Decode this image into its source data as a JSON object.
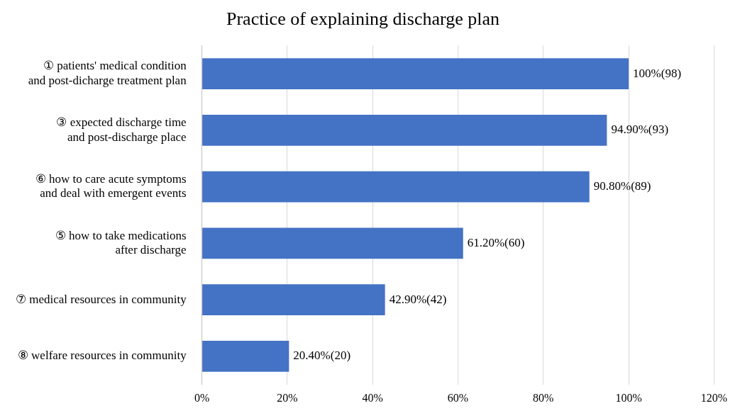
{
  "chart_data": {
    "type": "bar",
    "orientation": "horizontal",
    "title": "Practice of explaining discharge plan",
    "categories": [
      "① patients' medical condition and post-dicharge treatment plan",
      "③ expected discharge time and post-discharge place",
      "⑥ how to care acute symptoms and deal with emergent events",
      "⑤ how to take medications after discharge",
      "⑦ medical resources in community",
      "⑧ welfare resources in community"
    ],
    "values": [
      100,
      94.9,
      90.8,
      61.2,
      42.9,
      20.4
    ],
    "value_labels": [
      "100%(98)",
      "94.90%(93)",
      "90.80%(89)",
      "61.20%(60)",
      "42.90%(42)",
      "20.40%(20)"
    ],
    "color": "#4472c4",
    "xlim": [
      0,
      120
    ],
    "xticks": [
      {
        "value": 0,
        "label": "0%"
      },
      {
        "value": 20,
        "label": "20%"
      },
      {
        "value": 40,
        "label": "40%"
      },
      {
        "value": 60,
        "label": "60%"
      },
      {
        "value": 80,
        "label": "80%"
      },
      {
        "value": 100,
        "label": "100%"
      },
      {
        "value": 120,
        "label": "120%"
      }
    ],
    "grid": "x",
    "legend": false
  }
}
